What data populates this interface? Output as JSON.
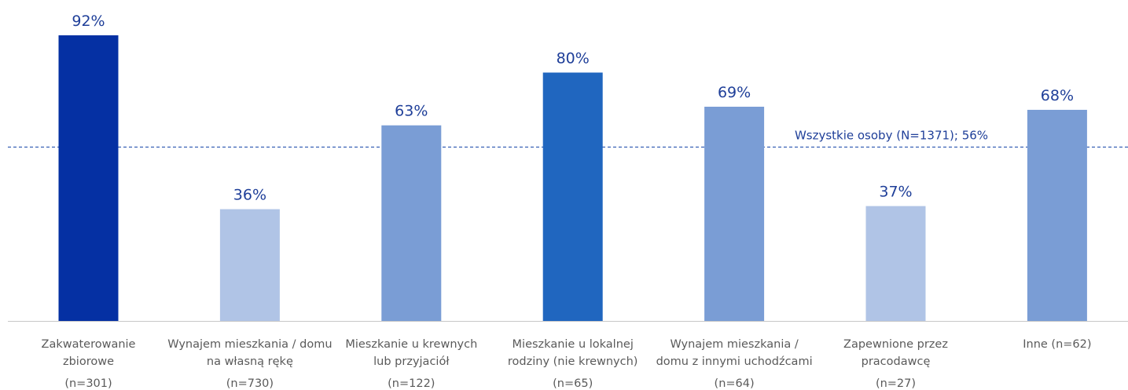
{
  "chart_data": {
    "type": "bar",
    "categories": [
      [
        "Zakwaterowanie",
        "zbiorowe"
      ],
      [
        "Wynajem mieszkania / domu",
        "na własną rękę"
      ],
      [
        "Mieszkanie u krewnych",
        "lub przyjaciół"
      ],
      [
        "Mieszkanie u lokalnej",
        "rodziny (nie krewnych)"
      ],
      [
        "Wynajem mieszkania /",
        "domu z innymi uchodźcami"
      ],
      [
        "Zapewnione przez",
        "pracodawcę"
      ],
      [
        "Inne (n=62)"
      ]
    ],
    "sample_sizes": [
      "(n=301)",
      "(n=730)",
      "(n=122)",
      "(n=65)",
      "(n=64)",
      "(n=27)",
      ""
    ],
    "values": [
      92,
      36,
      63,
      80,
      69,
      37,
      68
    ],
    "value_labels": [
      "92%",
      "36%",
      "63%",
      "80%",
      "69%",
      "37%",
      "68%"
    ],
    "bar_colors": [
      "#0530a3",
      "#b0c4e6",
      "#7a9dd5",
      "#2066bf",
      "#7a9dd5",
      "#b0c4e6",
      "#7a9dd5"
    ],
    "reference_line": {
      "value": 56,
      "label": "Wszystkie osoby (N=1371);  56%",
      "color": "#2a55b0"
    },
    "ylim": [
      0,
      100
    ],
    "grid": false,
    "axis_color": "#c8c8c8"
  }
}
